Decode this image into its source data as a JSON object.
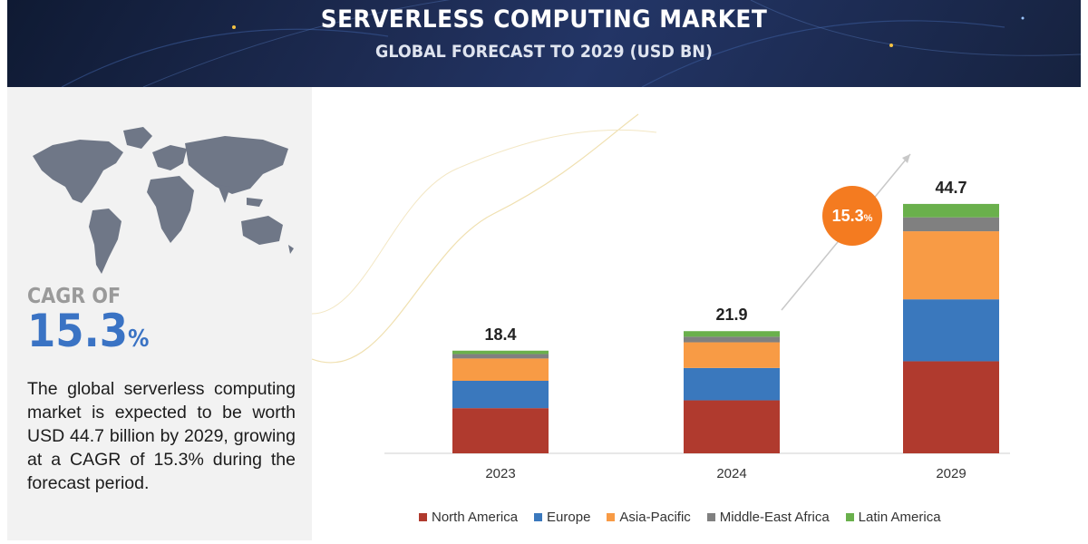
{
  "header": {
    "title": "SERVERLESS COMPUTING MARKET",
    "subtitle": "GLOBAL FORECAST TO 2029 (USD BN)"
  },
  "left_panel": {
    "cagr_label": "CAGR OF",
    "cagr_value": "15.3",
    "cagr_unit": "%",
    "description": "The global serverless computing market is expected to be worth USD 44.7 billion by 2029, growing at a CAGR of 15.3% during the forecast period."
  },
  "growth_badge": {
    "value": "15.3",
    "unit": "%"
  },
  "colors": {
    "header_bg": "#1d2b52",
    "north_america": "#b03a2e",
    "europe": "#3a78bd",
    "asia_pacific": "#f89b45",
    "middle_east_africa": "#808080",
    "latin_america": "#6ab04c",
    "badge": "#f47b20",
    "cagr_blue": "#3a73c4"
  },
  "chart_data": {
    "type": "bar",
    "stacked": true,
    "title": "SERVERLESS COMPUTING MARKET",
    "subtitle": "GLOBAL FORECAST TO 2029 (USD BN)",
    "categories": [
      "2023",
      "2024",
      "2029"
    ],
    "totals": [
      "18.4",
      "21.9",
      "44.7"
    ],
    "series": [
      {
        "name": "North America",
        "color": "#b03a2e",
        "values": [
          8.1,
          9.5,
          16.5
        ]
      },
      {
        "name": "Europe",
        "color": "#3a78bd",
        "values": [
          4.9,
          5.8,
          11.1
        ]
      },
      {
        "name": "Asia-Pacific",
        "color": "#f89b45",
        "values": [
          4.0,
          4.6,
          12.2
        ]
      },
      {
        "name": "Middle-East Africa",
        "color": "#808080",
        "values": [
          0.8,
          1.0,
          2.5
        ]
      },
      {
        "name": "Latin America",
        "color": "#6ab04c",
        "values": [
          0.6,
          1.0,
          2.4
        ]
      }
    ],
    "ylim": [
      0,
      50
    ],
    "grid": false,
    "legend": "bottom"
  }
}
